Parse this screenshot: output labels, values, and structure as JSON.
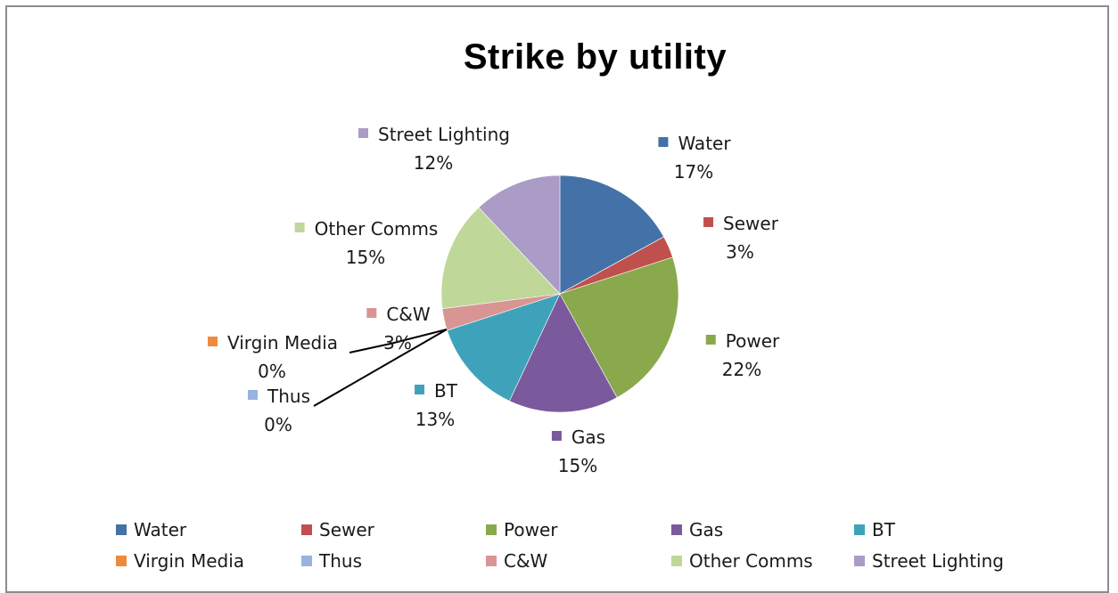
{
  "chart_data": {
    "type": "pie",
    "title": "Strike by utility",
    "legend_position": "bottom",
    "slices": [
      {
        "name": "Water",
        "value": 17,
        "label": "17%",
        "color": "#4472a8"
      },
      {
        "name": "Sewer",
        "value": 3,
        "label": "3%",
        "color": "#c0504d"
      },
      {
        "name": "Power",
        "value": 22,
        "label": "22%",
        "color": "#8aa94c"
      },
      {
        "name": "Gas",
        "value": 15,
        "label": "15%",
        "color": "#7a5a9c"
      },
      {
        "name": "BT",
        "value": 13,
        "label": "13%",
        "color": "#3ea3ba"
      },
      {
        "name": "Virgin Media",
        "value": 0,
        "label": "0%",
        "color": "#ee8a3c"
      },
      {
        "name": "Thus",
        "value": 0,
        "label": "0%",
        "color": "#97b3de"
      },
      {
        "name": "C&W",
        "value": 3,
        "label": "3%",
        "color": "#d99594"
      },
      {
        "name": "Other Comms",
        "value": 15,
        "label": "15%",
        "color": "#c0d79a"
      },
      {
        "name": "Street Lighting",
        "value": 12,
        "label": "12%",
        "color": "#ab9bc7"
      }
    ]
  }
}
